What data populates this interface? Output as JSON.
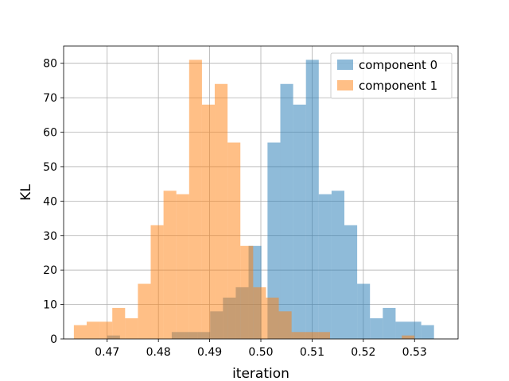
{
  "chart_data": {
    "type": "bar",
    "chart_subtype": "overlapping-histogram",
    "title": "",
    "xlabel": "iteration",
    "ylabel": "KL",
    "xlim": [
      0.4615,
      0.5385
    ],
    "ylim": [
      0,
      85
    ],
    "xticks": [
      0.47,
      0.48,
      0.49,
      0.5,
      0.51,
      0.52,
      0.53
    ],
    "xtick_labels": [
      "0.47",
      "0.48",
      "0.49",
      "0.50",
      "0.51",
      "0.52",
      "0.53"
    ],
    "yticks": [
      0,
      10,
      20,
      30,
      40,
      50,
      60,
      70,
      80
    ],
    "ytick_labels": [
      "0",
      "10",
      "20",
      "30",
      "40",
      "50",
      "60",
      "70",
      "80"
    ],
    "grid": true,
    "legend_position": "top-right",
    "series": [
      {
        "name": "component 0",
        "color": "#1f77b4",
        "alpha": 0.5,
        "bins": [
          [
            0.47,
            0.4725,
            1
          ],
          [
            0.4826,
            0.4851,
            2
          ],
          [
            0.4851,
            0.4876,
            2
          ],
          [
            0.4876,
            0.4901,
            2
          ],
          [
            0.4901,
            0.4926,
            8
          ],
          [
            0.4926,
            0.4951,
            12
          ],
          [
            0.4951,
            0.4976,
            15
          ],
          [
            0.4976,
            0.5001,
            27
          ],
          [
            0.5013,
            0.5038,
            57
          ],
          [
            0.5038,
            0.5063,
            74
          ],
          [
            0.5063,
            0.5088,
            68
          ],
          [
            0.5088,
            0.5113,
            81
          ],
          [
            0.5113,
            0.5138,
            42
          ],
          [
            0.5138,
            0.5163,
            43
          ],
          [
            0.5163,
            0.5188,
            33
          ],
          [
            0.5188,
            0.5213,
            16
          ],
          [
            0.5213,
            0.5238,
            6
          ],
          [
            0.5238,
            0.5263,
            9
          ],
          [
            0.5263,
            0.5288,
            5
          ],
          [
            0.5288,
            0.5313,
            5
          ],
          [
            0.5313,
            0.5338,
            4
          ]
        ]
      },
      {
        "name": "component 1",
        "color": "#ff7f0e",
        "alpha": 0.5,
        "bins": [
          [
            0.4635,
            0.466,
            4
          ],
          [
            0.466,
            0.4685,
            5
          ],
          [
            0.4685,
            0.471,
            5
          ],
          [
            0.471,
            0.4735,
            9
          ],
          [
            0.4735,
            0.476,
            6
          ],
          [
            0.476,
            0.4785,
            16
          ],
          [
            0.4785,
            0.481,
            33
          ],
          [
            0.481,
            0.4835,
            43
          ],
          [
            0.4835,
            0.486,
            42
          ],
          [
            0.486,
            0.4885,
            81
          ],
          [
            0.4885,
            0.491,
            68
          ],
          [
            0.491,
            0.4935,
            74
          ],
          [
            0.4935,
            0.496,
            57
          ],
          [
            0.496,
            0.4985,
            27
          ],
          [
            0.4985,
            0.501,
            15
          ],
          [
            0.501,
            0.5035,
            12
          ],
          [
            0.5035,
            0.506,
            8
          ],
          [
            0.506,
            0.5085,
            2
          ],
          [
            0.5085,
            0.511,
            2
          ],
          [
            0.511,
            0.5135,
            2
          ],
          [
            0.5275,
            0.53,
            1
          ]
        ]
      }
    ]
  }
}
